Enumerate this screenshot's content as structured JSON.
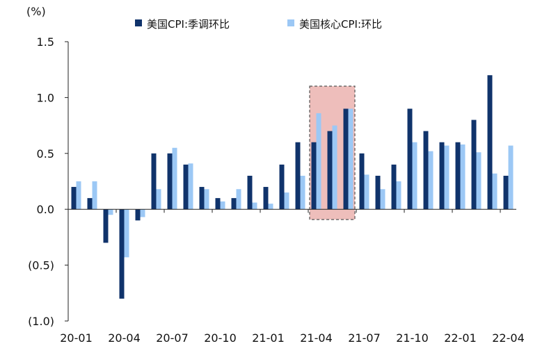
{
  "chart_data": {
    "type": "bar",
    "y_unit_label": "(%)",
    "ylim": [
      -1.0,
      1.5
    ],
    "y_ticks": [
      1.5,
      1.0,
      0.5,
      0.0,
      -0.5,
      -1.0
    ],
    "y_tick_labels": [
      "1.5",
      "1.0",
      "0.5",
      "0.0",
      "(0.5)",
      "(1.0)"
    ],
    "categories": [
      "20-01",
      "20-02",
      "20-03",
      "20-04",
      "20-05",
      "20-06",
      "20-07",
      "20-08",
      "20-09",
      "20-10",
      "20-11",
      "20-12",
      "21-01",
      "21-02",
      "21-03",
      "21-04",
      "21-05",
      "21-06",
      "21-07",
      "21-08",
      "21-09",
      "21-10",
      "21-11",
      "21-12",
      "22-01",
      "22-02",
      "22-03",
      "22-04"
    ],
    "x_tick_labels": [
      "20-01",
      "20-04",
      "20-07",
      "20-10",
      "21-01",
      "21-04",
      "21-07",
      "21-10",
      "22-01",
      "22-04"
    ],
    "series": [
      {
        "name": "美国CPI:季调环比",
        "color": "#10336b",
        "values": [
          0.2,
          0.1,
          -0.3,
          -0.8,
          -0.1,
          0.5,
          0.5,
          0.4,
          0.2,
          0.1,
          0.1,
          0.3,
          0.2,
          0.4,
          0.6,
          0.6,
          0.7,
          0.9,
          0.5,
          0.3,
          0.4,
          0.9,
          0.7,
          0.6,
          0.6,
          0.8,
          1.2,
          0.3
        ]
      },
      {
        "name": "美国核心CPI:环比",
        "color": "#9cc8f5",
        "values": [
          0.25,
          0.25,
          -0.05,
          -0.43,
          -0.07,
          0.18,
          0.55,
          0.41,
          0.18,
          0.07,
          0.18,
          0.06,
          0.05,
          0.15,
          0.3,
          0.86,
          0.75,
          0.9,
          0.31,
          0.18,
          0.25,
          0.6,
          0.52,
          0.57,
          0.58,
          0.51,
          0.32,
          0.57
        ]
      }
    ],
    "highlight": {
      "from_category": "21-04",
      "to_category": "21-06",
      "fill": "#e8a8a4",
      "border": "#555555"
    },
    "grid": false,
    "legend_position": "top"
  }
}
